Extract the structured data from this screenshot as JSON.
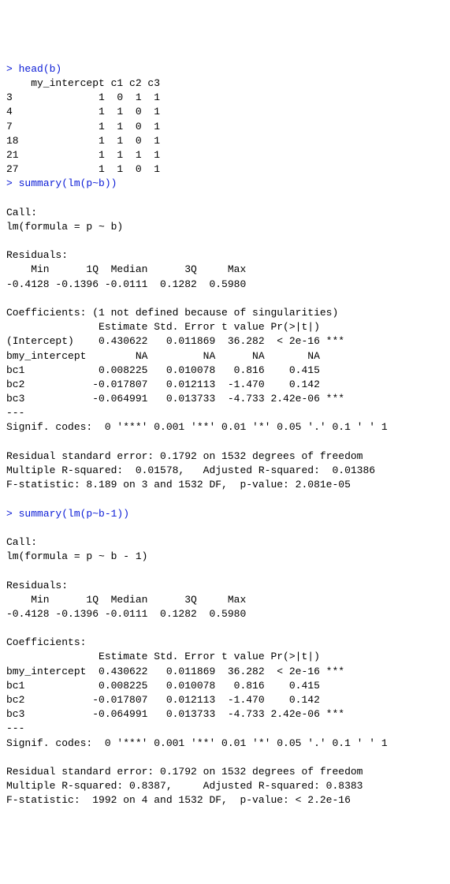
{
  "prompt": "> ",
  "cmd1": "head(b)",
  "head_header": "    my_intercept c1 c2 c3",
  "head_rows": [
    "3              1  0  1  1",
    "4              1  1  0  1",
    "7              1  1  0  1",
    "18             1  1  0  1",
    "21             1  1  1  1",
    "27             1  1  0  1"
  ],
  "cmd2": "summary(lm(p~b))",
  "s1_call_label": "Call:",
  "s1_call": "lm(formula = p ~ b)",
  "s1_res_label": "Residuals:",
  "s1_res_hdr": "    Min      1Q  Median      3Q     Max ",
  "s1_res_val": "-0.4128 -0.1396 -0.0111  0.1282  0.5980 ",
  "s1_coef_label": "Coefficients: (1 not defined because of singularities)",
  "s1_coef_hdr": "               Estimate Std. Error t value Pr(>|t|)    ",
  "s1_coef_rows": [
    "(Intercept)    0.430622   0.011869  36.282  < 2e-16 ***",
    "bmy_intercept        NA         NA      NA       NA    ",
    "bc1            0.008225   0.010078   0.816    0.415    ",
    "bc2           -0.017807   0.012113  -1.470    0.142    ",
    "bc3           -0.064991   0.013733  -4.733 2.42e-06 ***"
  ],
  "dashes": "---",
  "signif": "Signif. codes:  0 '***' 0.001 '**' 0.01 '*' 0.05 '.' 0.1 ' ' 1",
  "s1_rse": "Residual standard error: 0.1792 on 1532 degrees of freedom",
  "s1_r2": "Multiple R-squared:  0.01578,\tAdjusted R-squared:  0.01386 ",
  "s1_f": "F-statistic: 8.189 on 3 and 1532 DF,  p-value: 2.081e-05",
  "cmd3": "summary(lm(p~b-1))",
  "s2_call_label": "Call:",
  "s2_call": "lm(formula = p ~ b - 1)",
  "s2_res_label": "Residuals:",
  "s2_res_hdr": "    Min      1Q  Median      3Q     Max ",
  "s2_res_val": "-0.4128 -0.1396 -0.0111  0.1282  0.5980 ",
  "s2_coef_label": "Coefficients:",
  "s2_coef_hdr": "               Estimate Std. Error t value Pr(>|t|)    ",
  "s2_coef_rows": [
    "bmy_intercept  0.430622   0.011869  36.282  < 2e-16 ***",
    "bc1            0.008225   0.010078   0.816    0.415    ",
    "bc2           -0.017807   0.012113  -1.470    0.142    ",
    "bc3           -0.064991   0.013733  -4.733 2.42e-06 ***"
  ],
  "s2_rse": "Residual standard error: 0.1792 on 1532 degrees of freedom",
  "s2_r2": "Multiple R-squared: 0.8387,\tAdjusted R-squared: 0.8383 ",
  "s2_f": "F-statistic:  1992 on 4 and 1532 DF,  p-value: < 2.2e-16"
}
